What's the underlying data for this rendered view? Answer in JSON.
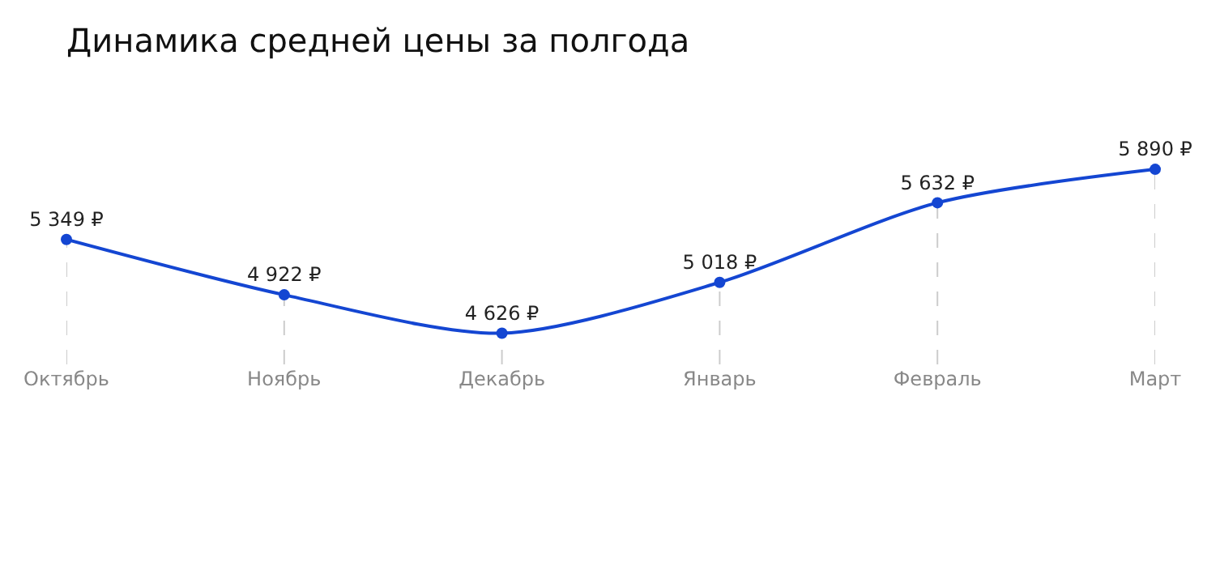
{
  "chart_data": {
    "type": "line",
    "title": "Динамика средней цены за полгода",
    "categories": [
      "Октябрь",
      "Ноябрь",
      "Декабрь",
      "Январь",
      "Февраль",
      "Март"
    ],
    "series": [
      {
        "color": "#1446d2",
        "values": [
          5349,
          4922,
          4626,
          5018,
          5632,
          5890
        ],
        "value_labels": [
          "5 349 ₽",
          "4 922 ₽",
          "4 626 ₽",
          "5 018 ₽",
          "5 632 ₽",
          "5 890 ₽"
        ]
      }
    ],
    "marker": "circle",
    "line_style": "solid",
    "grid": "x"
  }
}
